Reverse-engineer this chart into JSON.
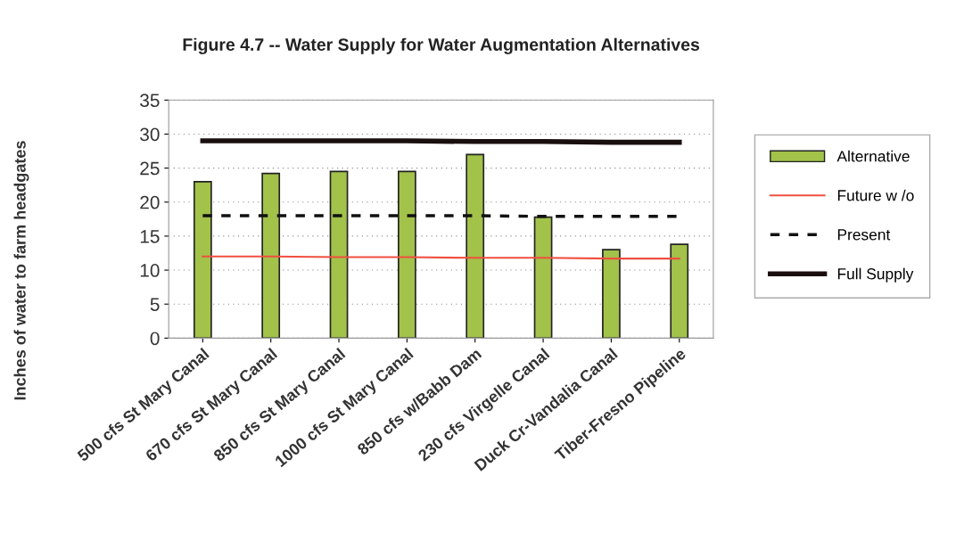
{
  "chart_data": {
    "type": "bar",
    "title": "Figure 4.7 -- Water Supply for Water Augmentation Alternatives",
    "ylabel": "Inches of water to farm headgates",
    "categories": [
      "500 cfs St Mary Canal",
      "670 cfs St Mary Canal",
      "850 cfs St Mary Canal",
      "1000 cfs St Mary Canal",
      "850 cfs w/Babb Dam",
      "230 cfs Virgelle Canal",
      "Duck Cr-Vandalia Canal",
      "Tiber-Fresno Pipeline"
    ],
    "series": [
      {
        "name": "Alternative",
        "color": "#a2c24a",
        "values": [
          23,
          24.2,
          24.5,
          24.5,
          27,
          17.8,
          13,
          13.8
        ]
      },
      {
        "name": "Future w /o",
        "type": "line",
        "color": "#f05040",
        "line_style": "solid",
        "values": [
          12,
          12,
          11.9,
          11.9,
          11.8,
          11.8,
          11.7,
          11.7
        ]
      },
      {
        "name": "Present",
        "type": "line",
        "color": "#111111",
        "line_style": "dashed",
        "values": [
          18,
          18,
          18,
          18,
          18,
          17.9,
          17.9,
          17.9
        ]
      },
      {
        "name": "Full Supply",
        "type": "line",
        "color": "#1a0f0f",
        "line_style": "solid",
        "values": [
          29,
          29,
          29,
          29,
          28.9,
          28.9,
          28.8,
          28.8
        ]
      }
    ],
    "ylim": [
      0,
      35
    ],
    "yticks": [
      0,
      5,
      10,
      15,
      20,
      25,
      30,
      35
    ],
    "grid": "y",
    "legend": "right"
  }
}
